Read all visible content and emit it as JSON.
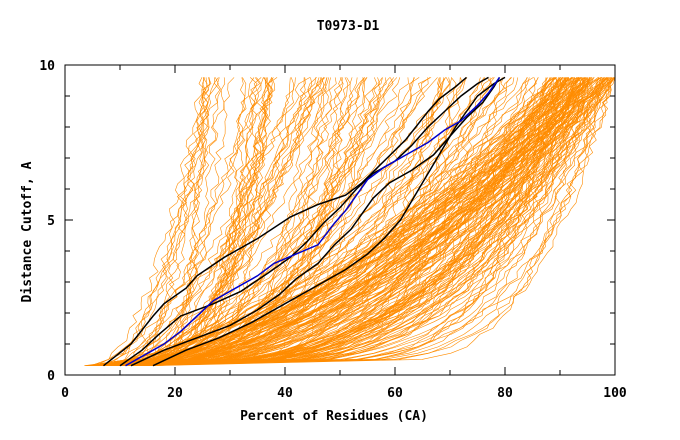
{
  "colors": {
    "background": "#ffffff",
    "axis": "#000000",
    "bundle": "#ff8c00",
    "highlight_black": "#000000",
    "highlight_blue": "#0000cc"
  },
  "chart_data": {
    "type": "line",
    "title": "T0973-D1",
    "xlabel": "Percent of Residues (CA)",
    "ylabel": "Distance Cutoff, A",
    "xlim": [
      0,
      100
    ],
    "ylim": [
      0,
      10
    ],
    "x_ticks": [
      0,
      20,
      40,
      60,
      80,
      100
    ],
    "y_ticks": [
      0,
      5,
      10
    ],
    "grid": false,
    "legend": "none",
    "bundle": {
      "description_count": 260,
      "y_start": 0.3,
      "y_end": 9.6,
      "x_start_range": [
        4,
        16
      ],
      "x_end_range": [
        25,
        100
      ],
      "color": "#ff8c00"
    },
    "series": [
      {
        "color": "#000000",
        "points": [
          [
            7,
            0.3
          ],
          [
            12,
            1.0
          ],
          [
            16,
            1.9
          ],
          [
            18,
            2.3
          ],
          [
            22,
            2.8
          ],
          [
            24,
            3.2
          ],
          [
            29,
            3.8
          ],
          [
            35,
            4.4
          ],
          [
            41,
            5.1
          ],
          [
            46,
            5.5
          ],
          [
            51,
            5.8
          ],
          [
            54,
            6.2
          ],
          [
            58,
            6.9
          ],
          [
            62,
            7.6
          ],
          [
            66,
            8.5
          ],
          [
            68,
            8.9
          ],
          [
            71,
            9.3
          ],
          [
            73,
            9.6
          ]
        ]
      },
      {
        "color": "#000000",
        "points": [
          [
            10,
            0.3
          ],
          [
            14,
            0.8
          ],
          [
            17,
            1.3
          ],
          [
            21,
            1.9
          ],
          [
            27,
            2.3
          ],
          [
            32,
            2.7
          ],
          [
            37,
            3.3
          ],
          [
            41,
            3.8
          ],
          [
            44,
            4.3
          ],
          [
            47,
            4.9
          ],
          [
            50,
            5.4
          ],
          [
            53,
            6.0
          ],
          [
            56,
            6.5
          ],
          [
            60,
            6.9
          ],
          [
            63,
            7.4
          ],
          [
            66,
            8.0
          ],
          [
            69,
            8.5
          ],
          [
            72,
            9.0
          ],
          [
            75,
            9.4
          ],
          [
            77,
            9.6
          ]
        ]
      },
      {
        "color": "#000000",
        "points": [
          [
            12,
            0.3
          ],
          [
            18,
            0.8
          ],
          [
            24,
            1.2
          ],
          [
            30,
            1.6
          ],
          [
            35,
            2.1
          ],
          [
            39,
            2.6
          ],
          [
            42,
            3.1
          ],
          [
            46,
            3.6
          ],
          [
            49,
            4.2
          ],
          [
            52,
            4.7
          ],
          [
            54,
            5.2
          ],
          [
            56,
            5.7
          ],
          [
            59,
            6.2
          ],
          [
            63,
            6.6
          ],
          [
            67,
            7.1
          ],
          [
            70,
            7.7
          ],
          [
            73,
            8.3
          ],
          [
            76,
            8.8
          ],
          [
            78,
            9.3
          ],
          [
            79,
            9.6
          ]
        ]
      },
      {
        "color": "#000000",
        "points": [
          [
            16,
            0.3
          ],
          [
            22,
            0.8
          ],
          [
            28,
            1.2
          ],
          [
            34,
            1.7
          ],
          [
            40,
            2.3
          ],
          [
            46,
            2.9
          ],
          [
            51,
            3.4
          ],
          [
            55,
            3.9
          ],
          [
            58,
            4.4
          ],
          [
            61,
            5.0
          ],
          [
            63,
            5.6
          ],
          [
            65,
            6.2
          ],
          [
            67,
            6.8
          ],
          [
            69,
            7.4
          ],
          [
            71,
            8.0
          ],
          [
            73,
            8.5
          ],
          [
            75,
            9.0
          ],
          [
            78,
            9.4
          ],
          [
            80,
            9.6
          ]
        ]
      },
      {
        "color": "#0000cc",
        "points": [
          [
            11,
            0.3
          ],
          [
            15,
            0.7
          ],
          [
            18,
            1.0
          ],
          [
            21,
            1.4
          ],
          [
            24,
            1.9
          ],
          [
            27,
            2.4
          ],
          [
            31,
            2.8
          ],
          [
            35,
            3.2
          ],
          [
            38,
            3.6
          ],
          [
            42,
            3.9
          ],
          [
            46,
            4.2
          ],
          [
            49,
            4.9
          ],
          [
            51,
            5.3
          ],
          [
            53,
            5.8
          ],
          [
            55,
            6.3
          ],
          [
            58,
            6.7
          ],
          [
            62,
            7.1
          ],
          [
            66,
            7.5
          ],
          [
            69,
            7.9
          ],
          [
            72,
            8.2
          ],
          [
            75,
            8.7
          ],
          [
            77,
            9.1
          ],
          [
            79,
            9.6
          ]
        ]
      }
    ]
  }
}
